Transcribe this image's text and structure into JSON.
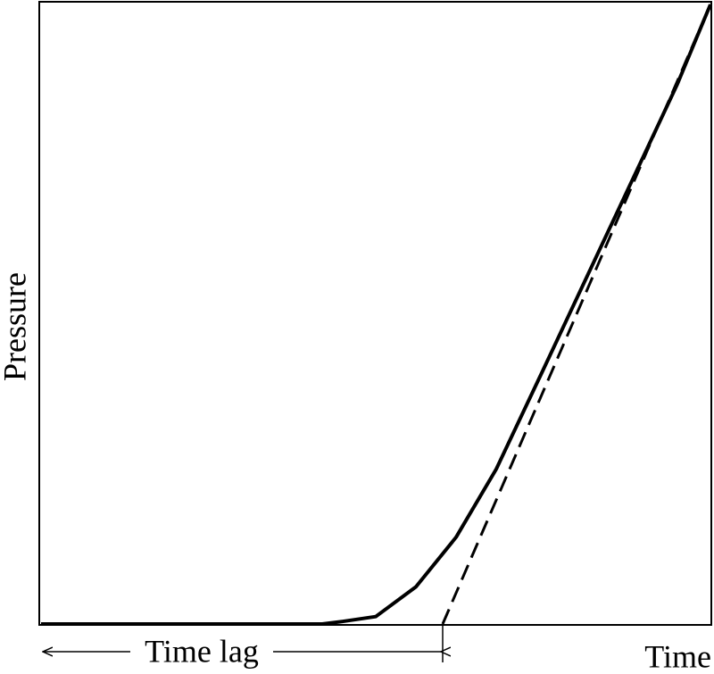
{
  "chart_data": {
    "type": "line",
    "title": "",
    "xlabel": "Time",
    "ylabel": "Pressure",
    "xlim": [
      0,
      1
    ],
    "ylim": [
      0,
      1
    ],
    "grid": false,
    "legend": "none",
    "ticks": false,
    "series": [
      {
        "style": "solid",
        "x": [
          0,
          0.2,
          0.42,
          0.45,
          0.5,
          0.56,
          0.62,
          0.68,
          0.75,
          0.85,
          0.95,
          1.0
        ],
        "y": [
          0,
          0,
          0,
          0.004,
          0.012,
          0.06,
          0.14,
          0.25,
          0.41,
          0.64,
          0.87,
          1.0
        ]
      },
      {
        "style": "dashed",
        "x": [
          0.6,
          1.0
        ],
        "y": [
          0,
          1.0
        ]
      }
    ],
    "annotations": [
      {
        "text": "Time lag",
        "type": "double-arrow",
        "x_range": [
          0,
          0.6
        ],
        "placement": "below-axis"
      }
    ]
  }
}
